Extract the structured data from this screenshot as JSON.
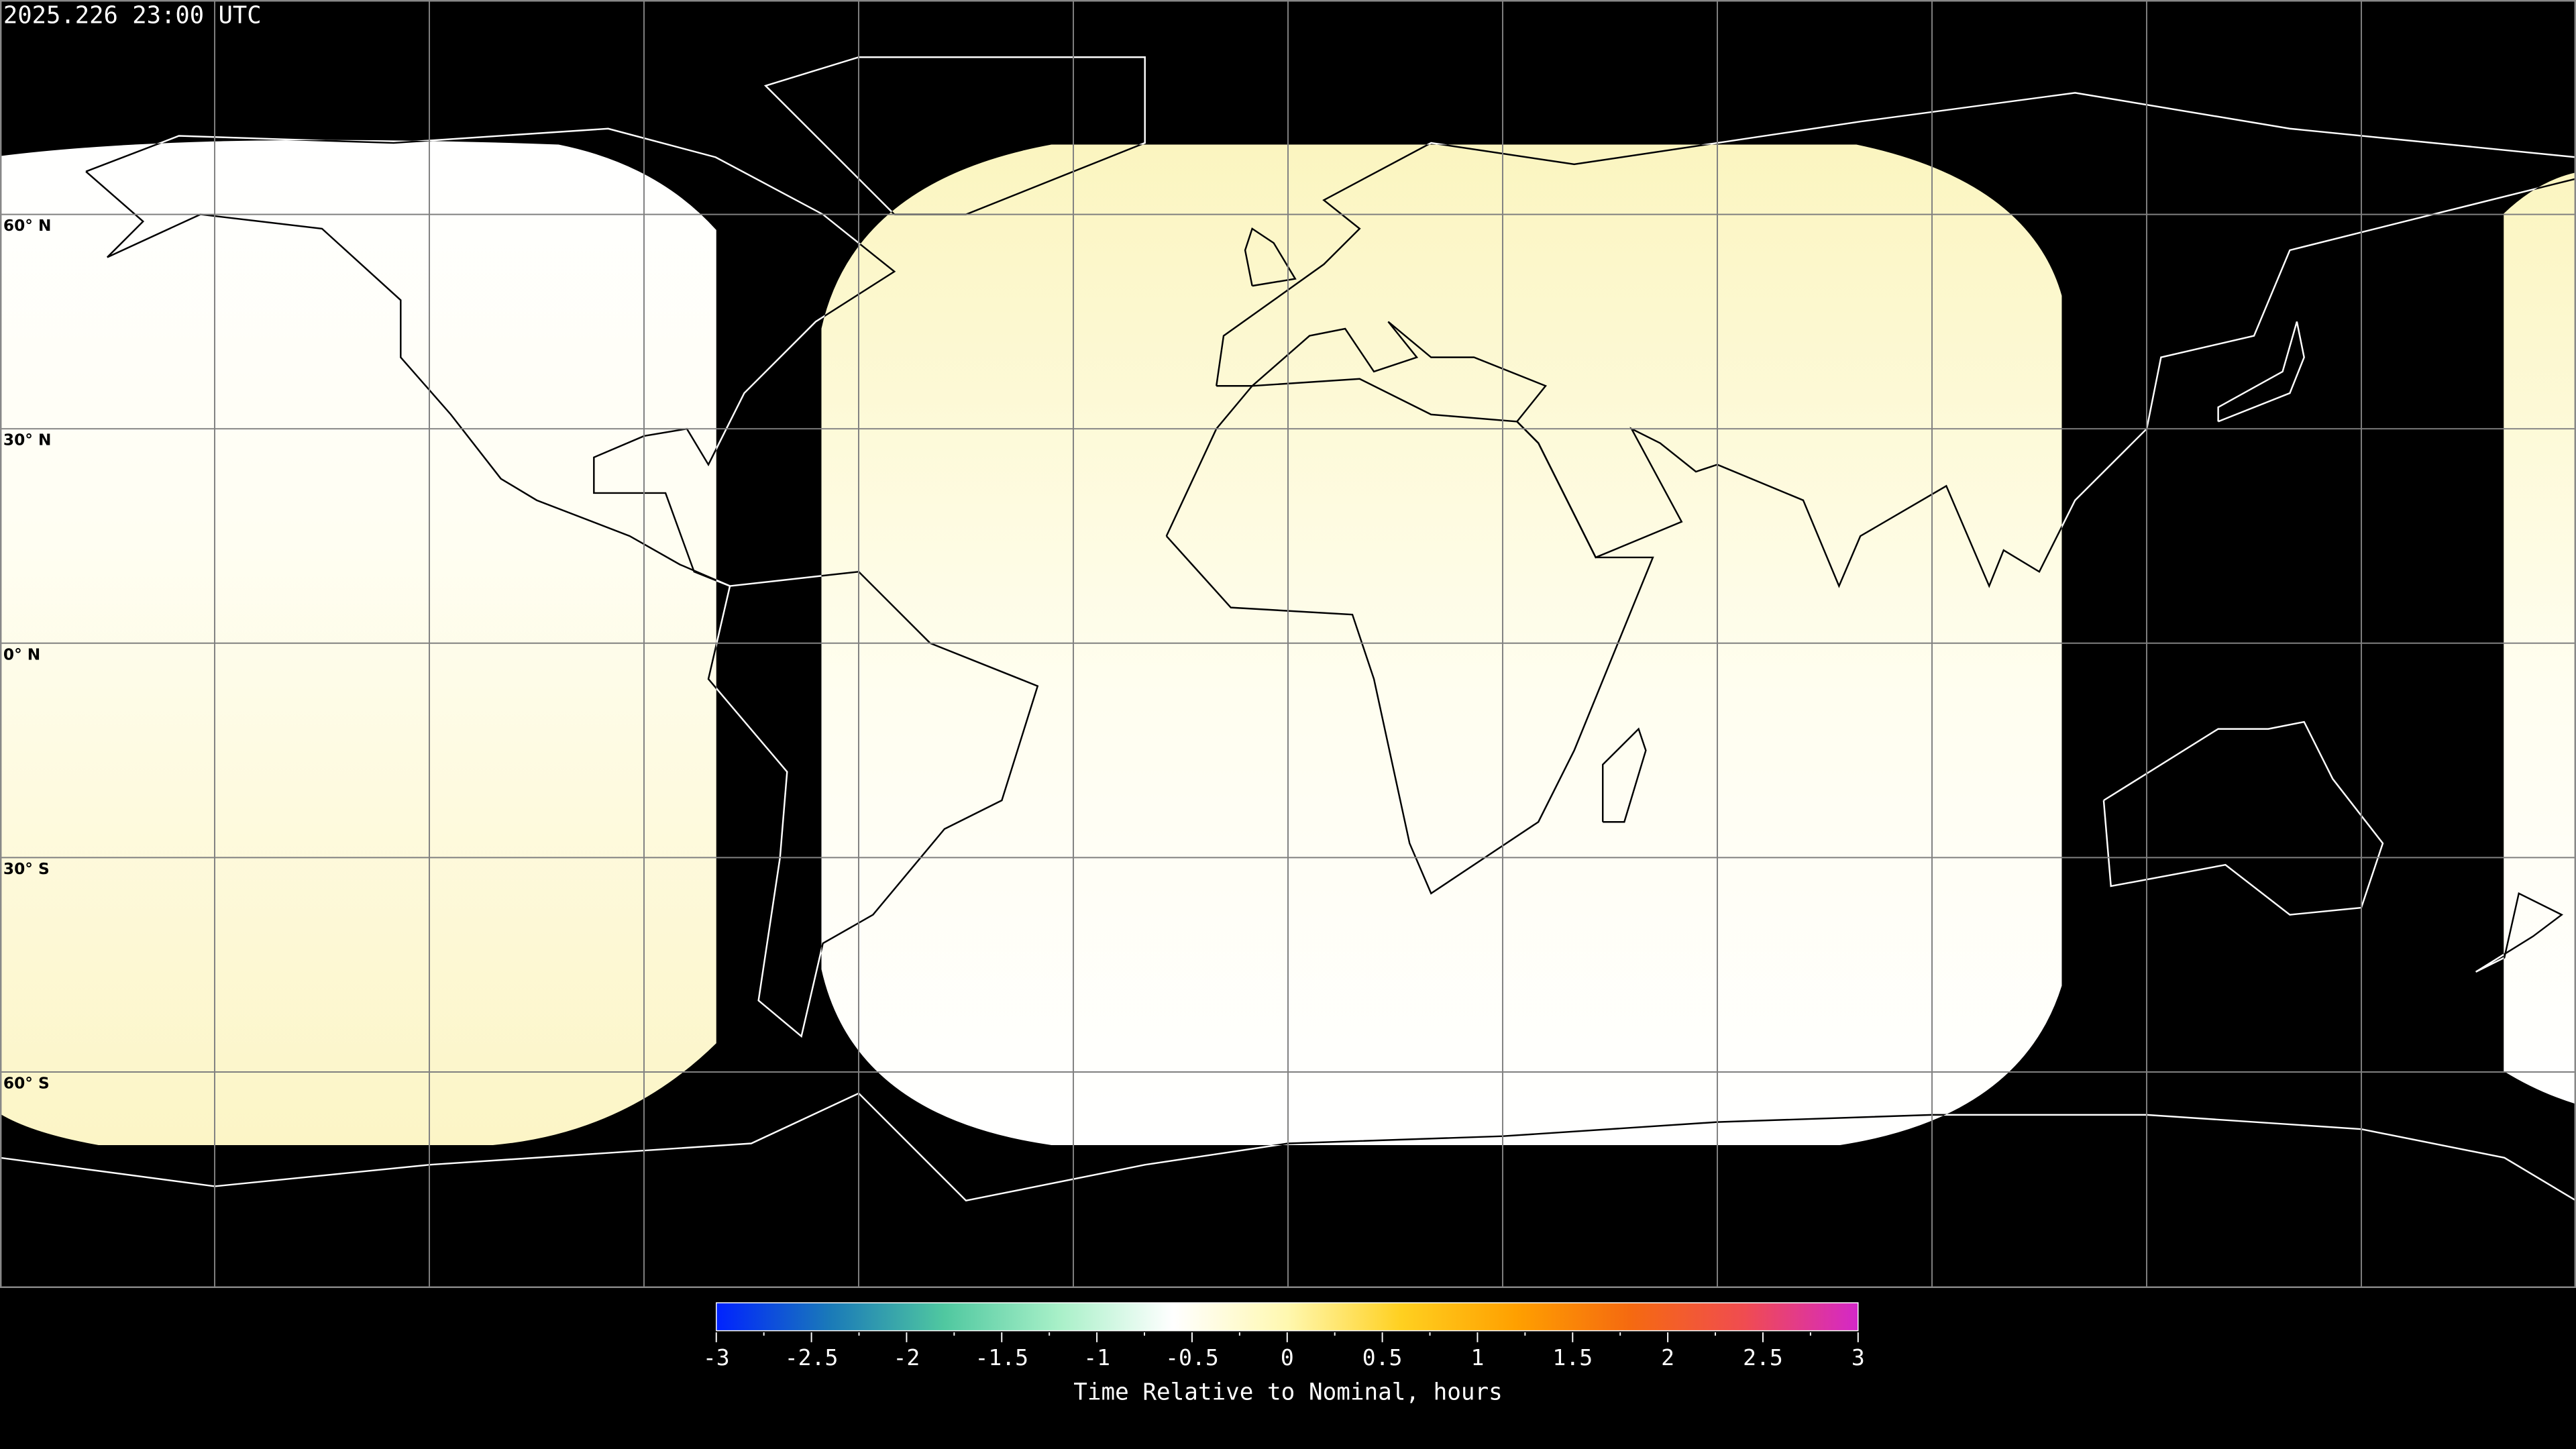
{
  "header": {
    "timestamp": "2025.226 23:00 UTC"
  },
  "map": {
    "projection": "equirectangular",
    "lat_labels": [
      "60° N",
      "30° N",
      "0° N",
      "30° S",
      "60° S"
    ],
    "graticule_step_degrees": 30,
    "colors": {
      "background": "#000000",
      "grid": "#808080",
      "coast_outside": "#ffffff",
      "coast_inside": "#000000"
    }
  },
  "colorbar": {
    "min": -3,
    "max": 3,
    "tick_labels": [
      "-3",
      "-2.5",
      "-2",
      "-1.5",
      "-1",
      "-0.5",
      "0",
      "0.5",
      "1",
      "1.5",
      "2",
      "2.5",
      "3"
    ],
    "label": "Time Relative to Nominal, hours",
    "colors": [
      "#0022ff",
      "#1a7ab8",
      "#50c8a0",
      "#a8f0c8",
      "#ffffff",
      "#fff8b0",
      "#ffd020",
      "#ffa000",
      "#f56a10",
      "#f04c50",
      "#d428c8"
    ]
  }
}
